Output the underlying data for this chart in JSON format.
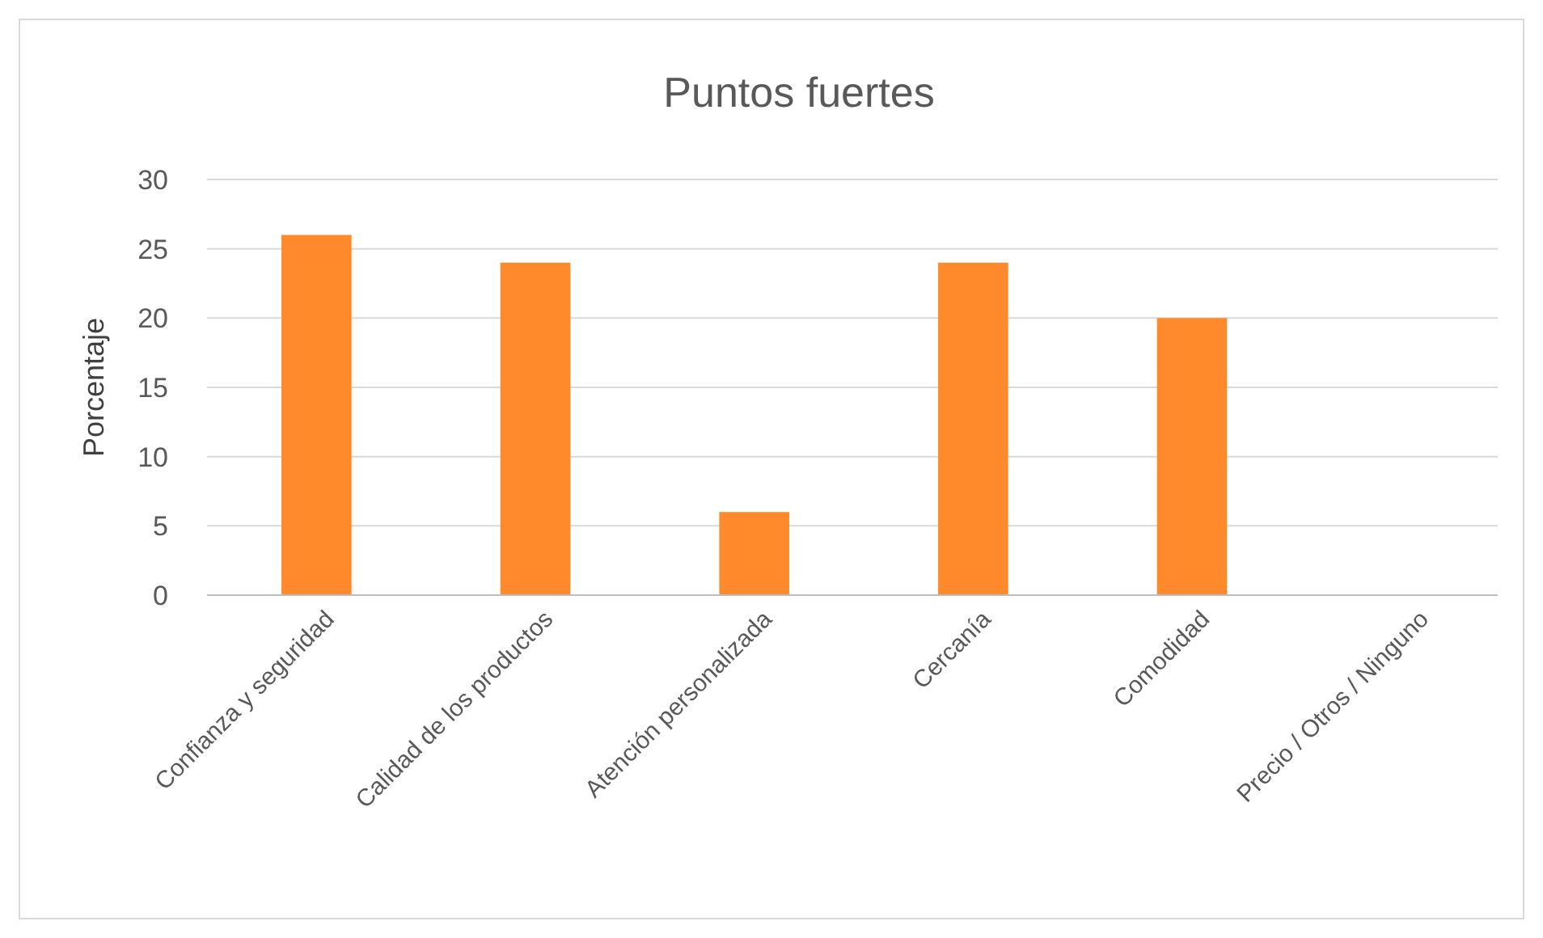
{
  "chart_data": {
    "type": "bar",
    "title": "Puntos fuertes",
    "ylabel": "Porcentaje",
    "categories": [
      "Confianza y seguridad",
      "Calidad de los productos",
      "Atención personalizada",
      "Cercanía",
      "Comodidad",
      "Precio / Otros / Ninguno"
    ],
    "values": [
      26,
      24,
      6,
      24,
      20,
      0
    ],
    "color": "#ff8a2b",
    "ylim": [
      0,
      30
    ],
    "yticks": [
      0,
      5,
      10,
      15,
      20,
      25,
      30
    ],
    "grid": "y"
  }
}
